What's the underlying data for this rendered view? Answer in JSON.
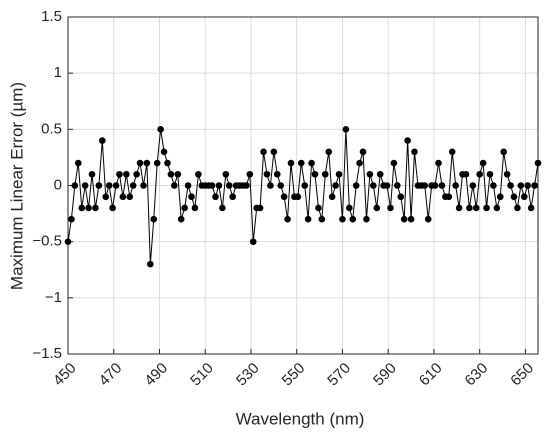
{
  "chart_data": {
    "type": "line",
    "x_label": "Wavelength (nm)",
    "y_label": "Maximum Linear Error (µm)",
    "x": [
      450,
      451.5,
      453,
      454.5,
      456,
      457.5,
      459,
      460.5,
      462,
      463.5,
      465,
      466.5,
      468,
      469.5,
      471,
      472.5,
      474,
      475.5,
      477,
      478.5,
      480,
      481.5,
      483,
      484.5,
      486,
      487.5,
      489,
      490.5,
      492,
      493.5,
      495,
      496.5,
      498,
      499.5,
      501,
      502.5,
      504,
      505.5,
      507,
      508.5,
      510,
      511.5,
      513,
      514.5,
      516,
      517.5,
      519,
      520.5,
      522,
      523.5,
      525,
      526.5,
      528,
      529.5,
      531,
      532.5,
      534,
      535.5,
      537,
      538.5,
      540,
      541.5,
      543,
      544.5,
      546,
      547.5,
      549,
      550.5,
      552,
      553.5,
      555,
      556.5,
      558,
      559.5,
      561,
      562.5,
      564,
      565.5,
      567,
      568.5,
      570,
      571.5,
      573,
      574.5,
      576,
      577.5,
      579,
      580.5,
      582,
      583.5,
      585,
      586.5,
      588,
      589.5,
      591,
      592.5,
      594,
      595.5,
      597,
      598.5,
      600,
      601.5,
      603,
      604.5,
      606,
      607.5,
      609,
      610.5,
      612,
      613.5,
      615,
      616.5,
      618,
      619.5,
      621,
      622.5,
      624,
      625.5,
      627,
      628.5,
      630,
      631.5,
      633,
      634.5,
      636,
      637.5,
      639,
      640.5,
      642,
      643.5,
      645,
      646.5,
      648,
      649.5,
      651,
      652.5,
      654,
      655.5
    ],
    "series": [
      {
        "color": "#000000",
        "values": [
          -0.5,
          -0.3,
          0,
          0.2,
          -0.2,
          0,
          -0.2,
          0.1,
          -0.2,
          0,
          0.4,
          -0.1,
          0,
          -0.2,
          0,
          0.1,
          -0.1,
          0.1,
          -0.1,
          0,
          0.1,
          0.2,
          0,
          0.2,
          -0.7,
          -0.3,
          0.2,
          0.5,
          0.3,
          0.2,
          0.1,
          0,
          0.1,
          -0.3,
          -0.2,
          0,
          -0.1,
          -0.2,
          0.1,
          0,
          0,
          0,
          0,
          -0.1,
          0,
          -0.2,
          0.1,
          0,
          -0.1,
          0,
          0,
          0,
          0,
          0.1,
          -0.5,
          -0.2,
          -0.2,
          0.3,
          0.1,
          0,
          0.3,
          0.1,
          0,
          -0.1,
          -0.3,
          0.2,
          -0.1,
          -0.1,
          0.2,
          0,
          -0.3,
          0.2,
          0.1,
          -0.2,
          -0.3,
          0.1,
          0.3,
          -0.1,
          0,
          0.1,
          -0.3,
          0.5,
          -0.2,
          -0.3,
          0,
          0.2,
          0.3,
          -0.3,
          0.1,
          0,
          -0.2,
          0.1,
          0,
          0,
          -0.2,
          0.2,
          0,
          -0.1,
          -0.3,
          0.4,
          -0.3,
          0.3,
          0,
          0,
          0,
          -0.3,
          0,
          0,
          0.2,
          0,
          -0.1,
          -0.1,
          0.3,
          0,
          -0.2,
          0.1,
          0.1,
          -0.2,
          0,
          -0.2,
          0.1,
          0.2,
          -0.2,
          0.1,
          0,
          -0.2,
          -0.1,
          0.3,
          0.1,
          0,
          -0.1,
          -0.2,
          0,
          -0.1,
          0,
          -0.2,
          0,
          0.2
        ]
      }
    ],
    "xlim": [
      450,
      655.5
    ],
    "xticks": [
      450,
      470,
      490,
      510,
      530,
      550,
      570,
      590,
      610,
      630,
      650
    ],
    "ylim": [
      -1.5,
      1.5
    ],
    "yticks": [
      {
        "value": -1.5,
        "label": "−1.5"
      },
      {
        "value": -1,
        "label": "−1"
      },
      {
        "value": -0.5,
        "label": "−0.5"
      },
      0,
      0.5,
      1,
      1.5
    ],
    "grid": true
  }
}
